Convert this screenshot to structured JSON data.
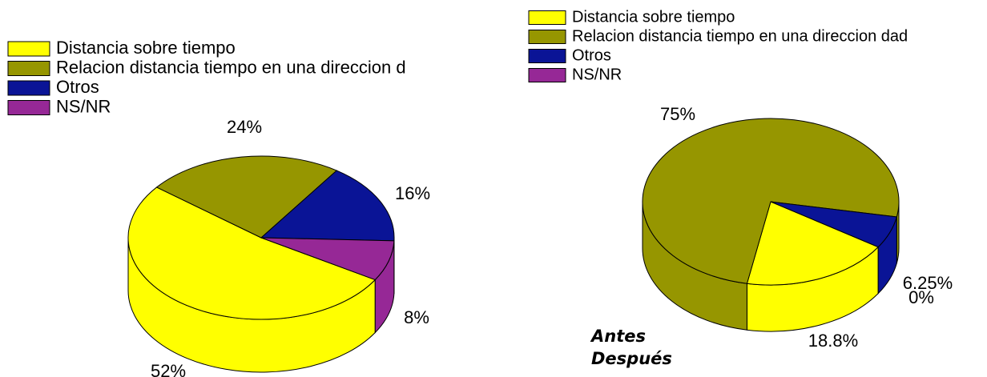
{
  "chart_data": [
    {
      "type": "pie",
      "categories": [
        "Distancia sobre tiempo",
        "Relacion distancia tiempo en una direccion d",
        "Otros",
        "NS/NR"
      ],
      "values": [
        52,
        24,
        16,
        8
      ],
      "value_labels": [
        "52%",
        "24%",
        "16%",
        "8%"
      ],
      "colors": [
        "#ffff00",
        "#969600",
        "#0a1496",
        "#962896"
      ],
      "legend": "top-left"
    },
    {
      "type": "pie",
      "categories": [
        "Distancia sobre tiempo",
        "Relacion distancia tiempo en una direccion dad",
        "Otros",
        "NS/NR"
      ],
      "values": [
        18.8,
        75,
        6.25,
        0
      ],
      "value_labels": [
        "18.8%",
        "75%",
        "6.25%",
        "0%"
      ],
      "colors": [
        "#ffff00",
        "#969600",
        "#0a1496",
        "#962896"
      ],
      "legend": "top-left",
      "annotations": [
        "Antes",
        "Después"
      ]
    }
  ]
}
